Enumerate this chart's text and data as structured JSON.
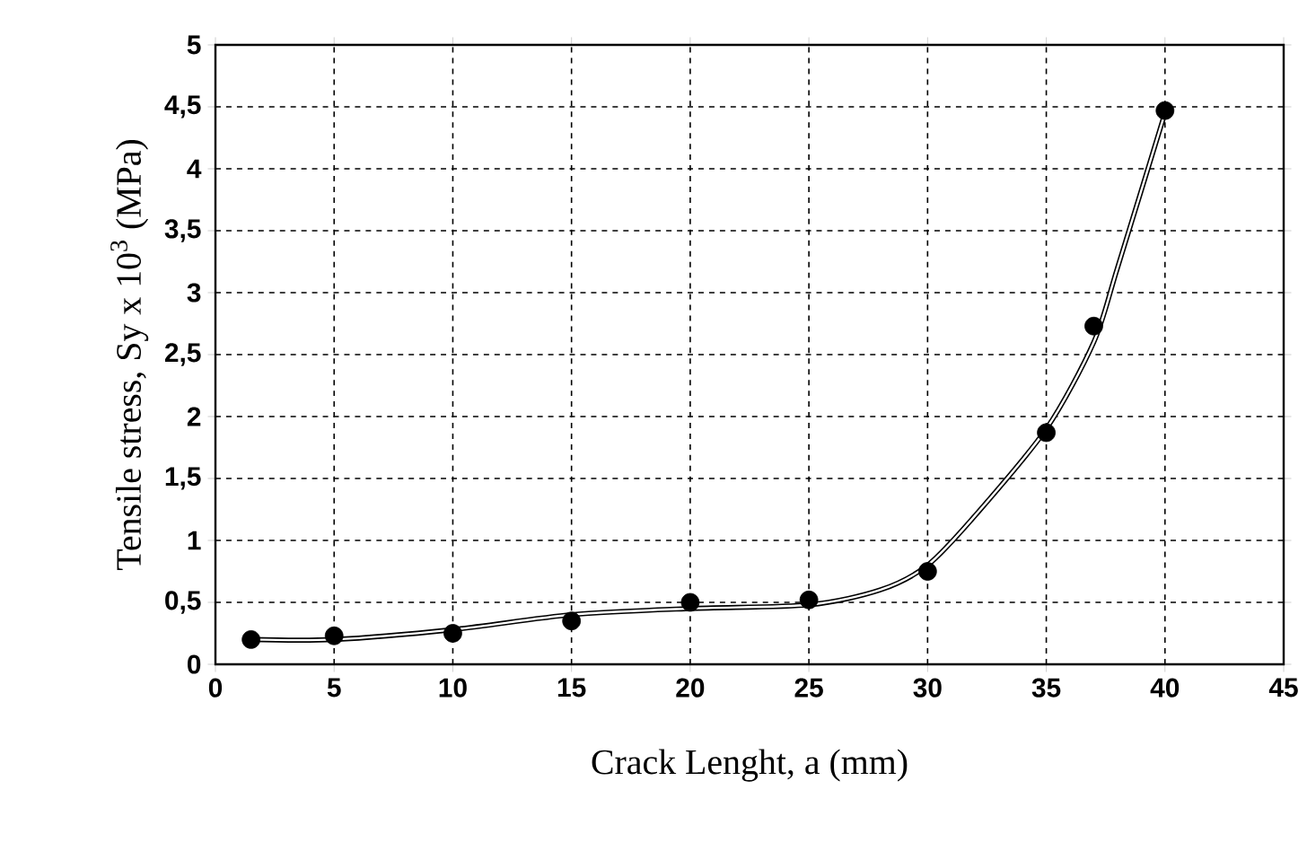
{
  "chart_data": {
    "type": "scatter",
    "xlabel": "Crack Lenght, a (mm)",
    "ylabel": "Tensile stress, Sy x 10$^{3}$ (MPa)",
    "x": [
      1.5,
      5,
      10,
      15,
      20,
      25,
      30,
      35,
      37,
      40
    ],
    "series": [
      {
        "marker": "circle",
        "color": "#000000",
        "values": [
          0.2,
          0.23,
          0.25,
          0.35,
          0.5,
          0.52,
          0.75,
          1.87,
          2.73,
          4.47
        ]
      },
      {
        "type": "line",
        "marker": "none",
        "color": "#000000",
        "x": [
          1.5,
          5,
          10,
          15,
          20,
          25,
          28,
          30,
          32,
          35,
          37,
          38,
          40
        ],
        "values": [
          0.2,
          0.2,
          0.28,
          0.4,
          0.45,
          0.48,
          0.6,
          0.8,
          1.2,
          1.9,
          2.6,
          3.2,
          4.45
        ]
      }
    ],
    "xlim": [
      0,
      45
    ],
    "xticks": [
      0,
      5,
      10,
      15,
      20,
      25,
      30,
      35,
      40,
      45
    ],
    "ylim": [
      0,
      5
    ],
    "yticks": [
      0,
      {
        "value": 0.5,
        "label": "0,5"
      },
      1,
      {
        "value": 1.5,
        "label": "1,5"
      },
      2,
      {
        "value": 2.5,
        "label": "2,5"
      },
      3,
      {
        "value": 3.5,
        "label": "3,5"
      },
      4,
      {
        "value": 4.5,
        "label": "4,5"
      },
      5
    ],
    "grid": true
  }
}
